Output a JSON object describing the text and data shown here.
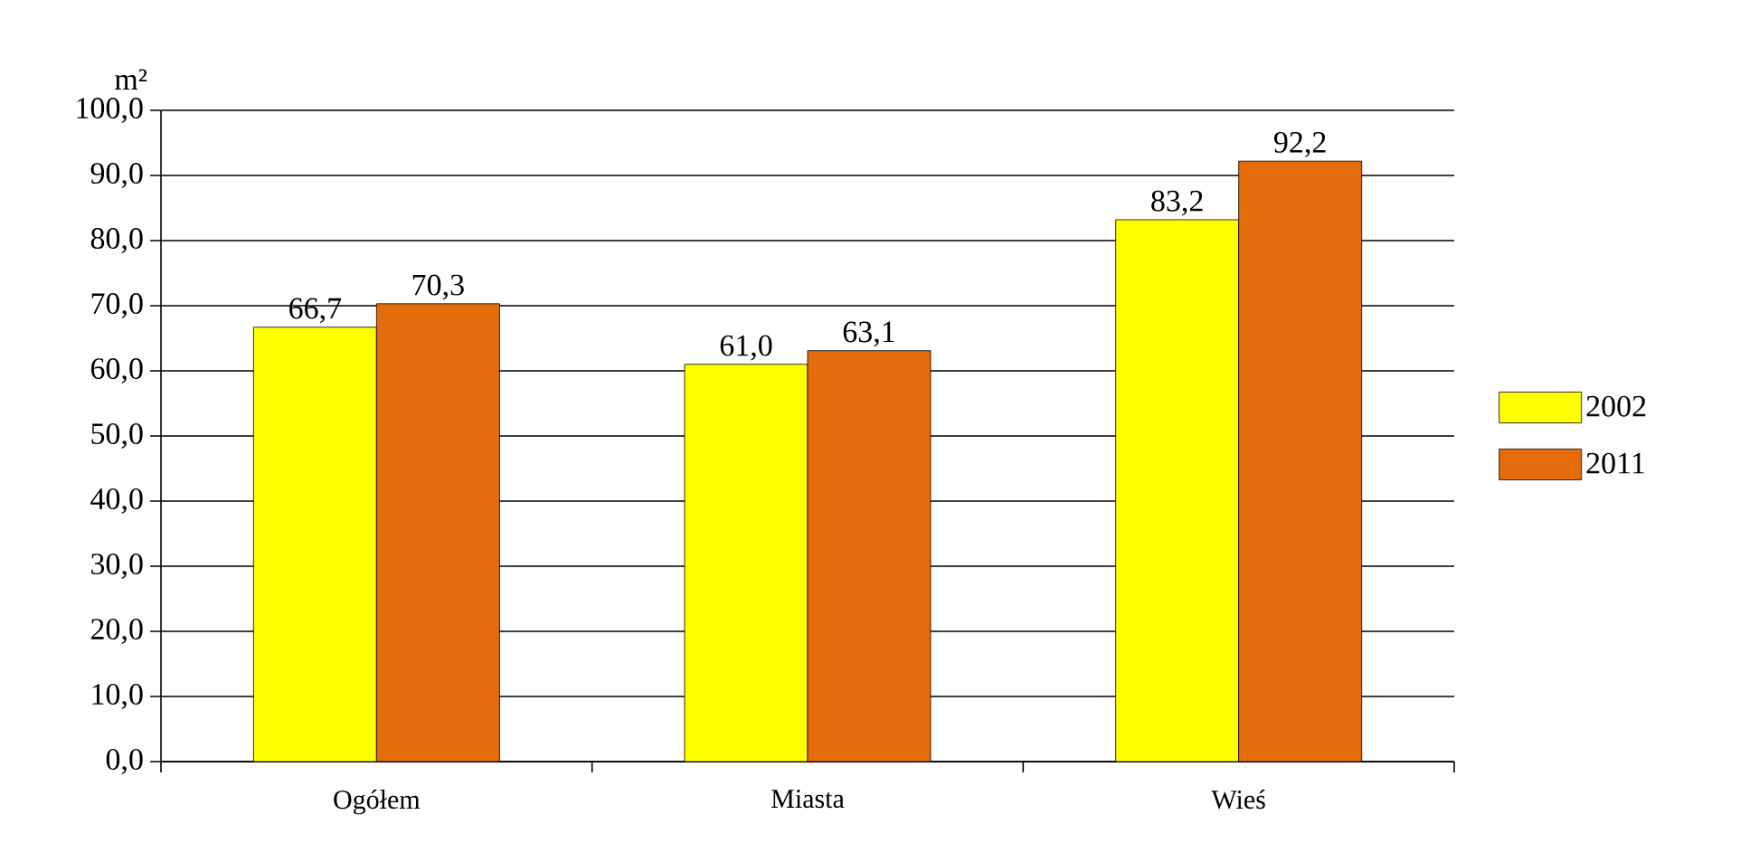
{
  "chart_data": {
    "type": "bar",
    "ylabel": "m²",
    "categories": [
      "Ogółem",
      "Miasta",
      "Wieś"
    ],
    "series": [
      {
        "name": "2002",
        "color": "#ffff00",
        "values": [
          66.7,
          61.0,
          83.2
        ],
        "value_labels": [
          "66,7",
          "61,0",
          "83,2"
        ]
      },
      {
        "name": "2011",
        "color": "#e46c0a",
        "values": [
          70.3,
          63.1,
          92.2
        ],
        "value_labels": [
          "70,3",
          "63,1",
          "92,2"
        ]
      }
    ],
    "ylim": [
      0,
      100
    ],
    "yticks": [
      {
        "value": 0,
        "label": "0,0"
      },
      {
        "value": 10,
        "label": "10,0"
      },
      {
        "value": 20,
        "label": "20,0"
      },
      {
        "value": 30,
        "label": "30,0"
      },
      {
        "value": 40,
        "label": "40,0"
      },
      {
        "value": 50,
        "label": "50,0"
      },
      {
        "value": 60,
        "label": "60,0"
      },
      {
        "value": 70,
        "label": "70,0"
      },
      {
        "value": 80,
        "label": "80,0"
      },
      {
        "value": 90,
        "label": "90,0"
      },
      {
        "value": 100,
        "label": "100,0"
      }
    ],
    "grid": "y",
    "legend": "right"
  }
}
